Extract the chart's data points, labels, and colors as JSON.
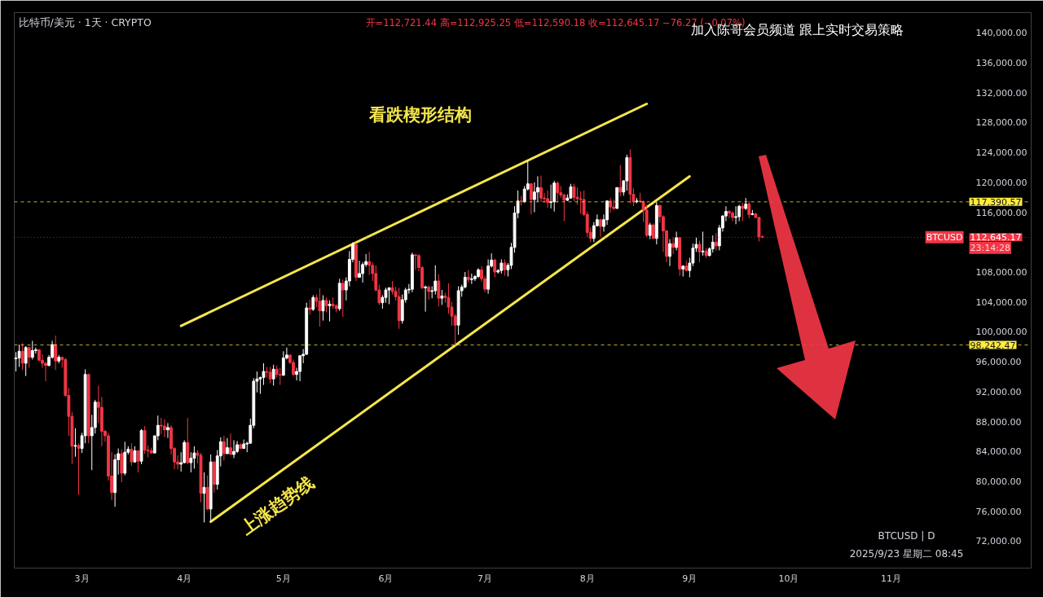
{
  "chart_data": {
    "type": "candlestick",
    "title": "比特币/美元 · 1天 · CRYPTO",
    "subtitle": "开=112,721.44 高=112,925.25 低=112,590.18 收=112,645.17 −76.27 (−0.07%)",
    "x": [
      "2025-02-09",
      "2025-02-10",
      "2025-02-11",
      "2025-02-12",
      "2025-02-13",
      "2025-02-14",
      "2025-02-15",
      "2025-02-16",
      "2025-02-17",
      "2025-02-18",
      "2025-02-19",
      "2025-02-20",
      "2025-02-21",
      "2025-02-22",
      "2025-02-23",
      "2025-02-24",
      "2025-02-25",
      "2025-02-26",
      "2025-02-27",
      "2025-02-28",
      "2025-03-01",
      "2025-03-02",
      "2025-03-03",
      "2025-03-04",
      "2025-03-05",
      "2025-03-06",
      "2025-03-07",
      "2025-03-08",
      "2025-03-09",
      "2025-03-10",
      "2025-03-11",
      "2025-03-12",
      "2025-03-13",
      "2025-03-14",
      "2025-03-15",
      "2025-03-16",
      "2025-03-17",
      "2025-03-18",
      "2025-03-19",
      "2025-03-20",
      "2025-03-21",
      "2025-03-22",
      "2025-03-23",
      "2025-03-24",
      "2025-03-25",
      "2025-03-26",
      "2025-03-27",
      "2025-03-28",
      "2025-03-29",
      "2025-03-30",
      "2025-03-31",
      "2025-04-01",
      "2025-04-02",
      "2025-04-03",
      "2025-04-04",
      "2025-04-05",
      "2025-04-06",
      "2025-04-07",
      "2025-04-08",
      "2025-04-09",
      "2025-04-10",
      "2025-04-11",
      "2025-04-12",
      "2025-04-13",
      "2025-04-14",
      "2025-04-15",
      "2025-04-16",
      "2025-04-17",
      "2025-04-18",
      "2025-04-19",
      "2025-04-20",
      "2025-04-21",
      "2025-04-22",
      "2025-04-23",
      "2025-04-24",
      "2025-04-25",
      "2025-04-26",
      "2025-04-27",
      "2025-04-28",
      "2025-04-29",
      "2025-04-30",
      "2025-05-01",
      "2025-05-02",
      "2025-05-03",
      "2025-05-04",
      "2025-05-05",
      "2025-05-06",
      "2025-05-07",
      "2025-05-08",
      "2025-05-09",
      "2025-05-10",
      "2025-05-11",
      "2025-05-12",
      "2025-05-13",
      "2025-05-14",
      "2025-05-15",
      "2025-05-16",
      "2025-05-17",
      "2025-05-18",
      "2025-05-19",
      "2025-05-20",
      "2025-05-21",
      "2025-05-22",
      "2025-05-23",
      "2025-05-24",
      "2025-05-25",
      "2025-05-26",
      "2025-05-27",
      "2025-05-28",
      "2025-05-29",
      "2025-05-30",
      "2025-05-31",
      "2025-06-01",
      "2025-06-02",
      "2025-06-03",
      "2025-06-04",
      "2025-06-05",
      "2025-06-06",
      "2025-06-07",
      "2025-06-08",
      "2025-06-09",
      "2025-06-10",
      "2025-06-11",
      "2025-06-12",
      "2025-06-13",
      "2025-06-14",
      "2025-06-15",
      "2025-06-16",
      "2025-06-17",
      "2025-06-18",
      "2025-06-19",
      "2025-06-20",
      "2025-06-21",
      "2025-06-22",
      "2025-06-23",
      "2025-06-24",
      "2025-06-25",
      "2025-06-26",
      "2025-06-27",
      "2025-06-28",
      "2025-06-29",
      "2025-06-30",
      "2025-07-01",
      "2025-07-02",
      "2025-07-03",
      "2025-07-04",
      "2025-07-05",
      "2025-07-06",
      "2025-07-07",
      "2025-07-08",
      "2025-07-09",
      "2025-07-10",
      "2025-07-11",
      "2025-07-12",
      "2025-07-13",
      "2025-07-14",
      "2025-07-15",
      "2025-07-16",
      "2025-07-17",
      "2025-07-18",
      "2025-07-19",
      "2025-07-20",
      "2025-07-21",
      "2025-07-22",
      "2025-07-23",
      "2025-07-24",
      "2025-07-25",
      "2025-07-26",
      "2025-07-27",
      "2025-07-28",
      "2025-07-29",
      "2025-07-30",
      "2025-07-31",
      "2025-08-01",
      "2025-08-02",
      "2025-08-03",
      "2025-08-04",
      "2025-08-05",
      "2025-08-06",
      "2025-08-07",
      "2025-08-08",
      "2025-08-09",
      "2025-08-10",
      "2025-08-11",
      "2025-08-12",
      "2025-08-13",
      "2025-08-14",
      "2025-08-15",
      "2025-08-16",
      "2025-08-17",
      "2025-08-18",
      "2025-08-19",
      "2025-08-20",
      "2025-08-21",
      "2025-08-22",
      "2025-08-23",
      "2025-08-24",
      "2025-08-25",
      "2025-08-26",
      "2025-08-27",
      "2025-08-28",
      "2025-08-29",
      "2025-08-30",
      "2025-08-31",
      "2025-09-01",
      "2025-09-02",
      "2025-09-03",
      "2025-09-04",
      "2025-09-05",
      "2025-09-06",
      "2025-09-07",
      "2025-09-08",
      "2025-09-09",
      "2025-09-10",
      "2025-09-11",
      "2025-09-12",
      "2025-09-13",
      "2025-09-14",
      "2025-09-15",
      "2025-09-16",
      "2025-09-17",
      "2025-09-18",
      "2025-09-19",
      "2025-09-20",
      "2025-09-21",
      "2025-09-22",
      "2025-09-23"
    ],
    "ohlc": [
      [
        96400,
        97300,
        94700,
        96500
      ],
      [
        96500,
        98300,
        95300,
        97400
      ],
      [
        97400,
        98500,
        94900,
        95800
      ],
      [
        95800,
        98100,
        94100,
        97900
      ],
      [
        97900,
        97900,
        95200,
        96600
      ],
      [
        96600,
        98800,
        96300,
        97500
      ],
      [
        97500,
        97900,
        97100,
        97600
      ],
      [
        97600,
        97700,
        96100,
        96200
      ],
      [
        96200,
        97000,
        95200,
        95800
      ],
      [
        95800,
        96000,
        93400,
        95500
      ],
      [
        95500,
        96900,
        95400,
        96600
      ],
      [
        96600,
        98800,
        96400,
        98300
      ],
      [
        98300,
        99500,
        94900,
        96100
      ],
      [
        96100,
        96900,
        95800,
        96600
      ],
      [
        96600,
        96700,
        95200,
        96300
      ],
      [
        96300,
        96500,
        91300,
        91500
      ],
      [
        91500,
        92500,
        86100,
        88700
      ],
      [
        88700,
        89300,
        82300,
        84700
      ],
      [
        84700,
        87100,
        83300,
        84800
      ],
      [
        84800,
        85100,
        78200,
        84400
      ],
      [
        84400,
        86500,
        83800,
        86100
      ],
      [
        86100,
        95000,
        85100,
        94300
      ],
      [
        94300,
        94400,
        85100,
        86100
      ],
      [
        86100,
        88900,
        81500,
        87200
      ],
      [
        87200,
        90900,
        86400,
        90600
      ],
      [
        90600,
        92800,
        87800,
        89900
      ],
      [
        89900,
        91300,
        84700,
        86700
      ],
      [
        86700,
        86900,
        85300,
        86100
      ],
      [
        86100,
        86500,
        80100,
        80700
      ],
      [
        80700,
        83900,
        77500,
        78500
      ],
      [
        78500,
        83600,
        76600,
        82900
      ],
      [
        82900,
        84400,
        80900,
        83700
      ],
      [
        83700,
        84300,
        79900,
        81100
      ],
      [
        81100,
        85300,
        80800,
        83900
      ],
      [
        83900,
        84700,
        83600,
        84300
      ],
      [
        84300,
        85100,
        82100,
        82600
      ],
      [
        82600,
        84700,
        82500,
        84100
      ],
      [
        84100,
        84100,
        81200,
        82700
      ],
      [
        82700,
        87000,
        82300,
        86800
      ],
      [
        86800,
        87400,
        83700,
        84200
      ],
      [
        84200,
        84800,
        83200,
        84100
      ],
      [
        84100,
        84500,
        83700,
        83800
      ],
      [
        83800,
        86100,
        83800,
        86100
      ],
      [
        86100,
        88800,
        85500,
        87500
      ],
      [
        87500,
        88500,
        86300,
        87400
      ],
      [
        87400,
        88300,
        85900,
        86900
      ],
      [
        86900,
        87800,
        85800,
        87200
      ],
      [
        87200,
        87500,
        83600,
        84400
      ],
      [
        84400,
        84600,
        81600,
        82600
      ],
      [
        82600,
        83500,
        81600,
        82300
      ],
      [
        82300,
        83900,
        81300,
        82500
      ],
      [
        82500,
        85500,
        82400,
        85200
      ],
      [
        85200,
        88500,
        82300,
        82500
      ],
      [
        82500,
        83900,
        81200,
        83100
      ],
      [
        83100,
        84700,
        81700,
        83800
      ],
      [
        83800,
        84200,
        82400,
        83500
      ],
      [
        83500,
        83800,
        77200,
        78400
      ],
      [
        78400,
        81200,
        74500,
        79200
      ],
      [
        79200,
        80800,
        76200,
        76300
      ],
      [
        76300,
        83600,
        74600,
        82600
      ],
      [
        82600,
        82700,
        78500,
        79600
      ],
      [
        79600,
        84200,
        78900,
        83400
      ],
      [
        83400,
        85900,
        82000,
        85300
      ],
      [
        85300,
        86100,
        82800,
        83700
      ],
      [
        83700,
        85800,
        83700,
        84500
      ],
      [
        84500,
        86400,
        83600,
        83600
      ],
      [
        83600,
        85500,
        83100,
        84000
      ],
      [
        84000,
        85400,
        83800,
        84900
      ],
      [
        84900,
        85100,
        84300,
        84400
      ],
      [
        84400,
        85600,
        84400,
        85000
      ],
      [
        85000,
        85300,
        83900,
        85100
      ],
      [
        85100,
        88400,
        85100,
        87500
      ],
      [
        87500,
        93800,
        87100,
        93400
      ],
      [
        93400,
        94700,
        91900,
        93700
      ],
      [
        93700,
        94000,
        91700,
        93900
      ],
      [
        93900,
        95800,
        92900,
        94700
      ],
      [
        94700,
        95300,
        93900,
        94600
      ],
      [
        94600,
        95300,
        93100,
        93700
      ],
      [
        93700,
        95600,
        92800,
        95000
      ],
      [
        95000,
        95500,
        93900,
        94300
      ],
      [
        94300,
        95200,
        92900,
        94200
      ],
      [
        94200,
        97400,
        94100,
        96500
      ],
      [
        96500,
        97900,
        96300,
        96900
      ],
      [
        96900,
        96900,
        95700,
        95900
      ],
      [
        95900,
        96300,
        94100,
        94300
      ],
      [
        94300,
        95200,
        93500,
        94700
      ],
      [
        94700,
        96900,
        93400,
        96800
      ],
      [
        96800,
        97700,
        95800,
        97000
      ],
      [
        97000,
        103900,
        96900,
        103200
      ],
      [
        103200,
        104300,
        102300,
        103000
      ],
      [
        103000,
        104900,
        102800,
        104600
      ],
      [
        104600,
        105000,
        103300,
        104100
      ],
      [
        104100,
        105800,
        100700,
        102800
      ],
      [
        102800,
        104900,
        101500,
        104200
      ],
      [
        104200,
        104600,
        102600,
        103500
      ],
      [
        103500,
        104200,
        101400,
        103700
      ],
      [
        103700,
        104600,
        103100,
        103500
      ],
      [
        103500,
        103700,
        102600,
        103100
      ],
      [
        103100,
        107100,
        102800,
        106500
      ],
      [
        106500,
        107000,
        102000,
        105600
      ],
      [
        105600,
        107300,
        104200,
        106800
      ],
      [
        106800,
        110800,
        106100,
        109700
      ],
      [
        109700,
        112000,
        109300,
        111700
      ],
      [
        111700,
        111900,
        106800,
        107300
      ],
      [
        107300,
        109500,
        107300,
        107800
      ],
      [
        107800,
        109300,
        106600,
        109000
      ],
      [
        109000,
        110400,
        108700,
        109400
      ],
      [
        109400,
        110700,
        107600,
        108900
      ],
      [
        108900,
        109300,
        106800,
        107800
      ],
      [
        107800,
        108900,
        105400,
        105600
      ],
      [
        105600,
        106300,
        103600,
        103900
      ],
      [
        103900,
        104900,
        103100,
        104600
      ],
      [
        104600,
        105900,
        103900,
        105600
      ],
      [
        105600,
        105900,
        103700,
        105900
      ],
      [
        105900,
        106800,
        105000,
        105400
      ],
      [
        105400,
        106000,
        104200,
        104700
      ],
      [
        104700,
        105900,
        100400,
        101500
      ],
      [
        101500,
        105000,
        101100,
        104300
      ],
      [
        104300,
        105900,
        103900,
        105600
      ],
      [
        105600,
        106400,
        105100,
        105700
      ],
      [
        105700,
        110600,
        105300,
        110300
      ],
      [
        110300,
        110400,
        108300,
        110200
      ],
      [
        110200,
        110400,
        108100,
        108600
      ],
      [
        108600,
        108800,
        105700,
        105900
      ],
      [
        105900,
        106200,
        102700,
        106000
      ],
      [
        106000,
        106200,
        104300,
        105400
      ],
      [
        105400,
        106100,
        104500,
        105500
      ],
      [
        105500,
        108900,
        105000,
        106800
      ],
      [
        106800,
        107700,
        103400,
        104500
      ],
      [
        104500,
        105600,
        103600,
        104800
      ],
      [
        104800,
        105200,
        103900,
        104600
      ],
      [
        104600,
        106500,
        102400,
        103300
      ],
      [
        103300,
        104000,
        100800,
        102100
      ],
      [
        102100,
        102400,
        98200,
        100900
      ],
      [
        100900,
        106100,
        99600,
        105500
      ],
      [
        105500,
        106300,
        104700,
        106000
      ],
      [
        106000,
        108000,
        105800,
        107300
      ],
      [
        107300,
        108300,
        106600,
        107000
      ],
      [
        107000,
        107800,
        106400,
        107100
      ],
      [
        107100,
        107600,
        106800,
        107400
      ],
      [
        107400,
        108500,
        107200,
        108300
      ],
      [
        108300,
        108800,
        106700,
        107100
      ],
      [
        107100,
        107500,
        105300,
        105700
      ],
      [
        105700,
        109700,
        105100,
        108800
      ],
      [
        108800,
        110500,
        108600,
        109600
      ],
      [
        109600,
        109800,
        107300,
        108000
      ],
      [
        108000,
        108400,
        107800,
        108200
      ],
      [
        108200,
        109700,
        107800,
        109200
      ],
      [
        109200,
        109700,
        107500,
        108300
      ],
      [
        108300,
        109200,
        107400,
        108900
      ],
      [
        108900,
        111900,
        108400,
        111300
      ],
      [
        111300,
        116800,
        110600,
        115900
      ],
      [
        115900,
        118900,
        115200,
        117500
      ],
      [
        117500,
        118200,
        116900,
        117400
      ],
      [
        117400,
        119500,
        117300,
        119100
      ],
      [
        119100,
        122900,
        118900,
        119800
      ],
      [
        119800,
        119900,
        115700,
        117700
      ],
      [
        117700,
        120000,
        116000,
        118700
      ],
      [
        118700,
        120800,
        117400,
        119300
      ],
      [
        119300,
        120900,
        117400,
        117900
      ],
      [
        117900,
        118600,
        117300,
        117800
      ],
      [
        117800,
        118900,
        116600,
        117300
      ],
      [
        117300,
        119700,
        116500,
        117400
      ],
      [
        117400,
        120200,
        116100,
        119900
      ],
      [
        119900,
        120100,
        117300,
        118600
      ],
      [
        118600,
        119500,
        117900,
        118300
      ],
      [
        118300,
        118500,
        114800,
        117600
      ],
      [
        117600,
        118400,
        117500,
        117900
      ],
      [
        117900,
        119800,
        117800,
        119400
      ],
      [
        119400,
        119800,
        117500,
        118000
      ],
      [
        118000,
        119300,
        117000,
        117800
      ],
      [
        117800,
        118800,
        115800,
        117700
      ],
      [
        117700,
        118900,
        115500,
        115700
      ],
      [
        115700,
        116100,
        112700,
        113300
      ],
      [
        113300,
        114000,
        112000,
        112500
      ],
      [
        112500,
        114700,
        112000,
        114200
      ],
      [
        114200,
        115700,
        114100,
        115000
      ],
      [
        115000,
        115100,
        112700,
        114100
      ],
      [
        114100,
        115700,
        113400,
        115000
      ],
      [
        115000,
        117600,
        114300,
        117500
      ],
      [
        117500,
        117900,
        115900,
        116700
      ],
      [
        116700,
        117700,
        116300,
        116500
      ],
      [
        116500,
        119300,
        116500,
        119300
      ],
      [
        119300,
        122300,
        118100,
        118700
      ],
      [
        118700,
        120300,
        118200,
        120200
      ],
      [
        120200,
        123700,
        118900,
        123300
      ],
      [
        123300,
        124400,
        117200,
        118400
      ],
      [
        118400,
        119200,
        116800,
        117400
      ],
      [
        117400,
        117900,
        117200,
        117500
      ],
      [
        117500,
        118600,
        117300,
        117400
      ],
      [
        117400,
        117600,
        114700,
        116300
      ],
      [
        116300,
        117000,
        112700,
        112900
      ],
      [
        112900,
        114600,
        112400,
        114300
      ],
      [
        114300,
        114500,
        112400,
        112500
      ],
      [
        112500,
        117400,
        111700,
        116900
      ],
      [
        116900,
        117000,
        114600,
        115400
      ],
      [
        115400,
        115600,
        110700,
        113500
      ],
      [
        113500,
        113600,
        109300,
        110100
      ],
      [
        110100,
        112400,
        108800,
        111800
      ],
      [
        111800,
        112600,
        110400,
        111300
      ],
      [
        111300,
        113400,
        110900,
        112600
      ],
      [
        112600,
        112700,
        107500,
        108400
      ],
      [
        108400,
        108900,
        107400,
        108800
      ],
      [
        108800,
        109500,
        108100,
        108200
      ],
      [
        108200,
        109900,
        107300,
        109200
      ],
      [
        109200,
        111800,
        108800,
        111200
      ],
      [
        111200,
        112600,
        110700,
        111700
      ],
      [
        111700,
        112200,
        109300,
        110700
      ],
      [
        110700,
        113400,
        110200,
        110800
      ],
      [
        110800,
        111200,
        109900,
        110200
      ],
      [
        110200,
        111300,
        110100,
        111100
      ],
      [
        111100,
        112900,
        110600,
        112000
      ],
      [
        112000,
        113200,
        110900,
        111500
      ],
      [
        111500,
        114300,
        110900,
        113900
      ],
      [
        113900,
        115600,
        113400,
        115500
      ],
      [
        115500,
        116800,
        114800,
        116100
      ],
      [
        116100,
        116300,
        115200,
        115900
      ],
      [
        115900,
        116100,
        114800,
        115300
      ],
      [
        115300,
        116800,
        114400,
        115400
      ],
      [
        115400,
        117000,
        114800,
        116800
      ],
      [
        116800,
        117300,
        114800,
        116500
      ],
      [
        116500,
        117900,
        116300,
        117100
      ],
      [
        117100,
        117500,
        115200,
        115700
      ],
      [
        115700,
        116300,
        115600,
        115800
      ],
      [
        115800,
        115900,
        115200,
        115300
      ],
      [
        115300,
        115400,
        112100,
        112700
      ],
      [
        112721.44,
        112925.25,
        112590.18,
        112645.17
      ]
    ],
    "colors": [
      "#ffffff",
      "#ffffff",
      "#f23645",
      "#ffffff",
      "#f23645",
      "#ffffff",
      "#ffffff",
      "#f23645",
      "#f23645",
      "#f23645",
      "#ffffff",
      "#ffffff",
      "#f23645",
      "#ffffff",
      "#f23645",
      "#f23645",
      "#f23645",
      "#f23645",
      "#ffffff",
      "#f23645",
      "#ffffff",
      "#ffffff",
      "#f23645",
      "#ffffff",
      "#ffffff",
      "#f23645",
      "#f23645",
      "#f23645",
      "#f23645",
      "#f23645",
      "#ffffff",
      "#ffffff",
      "#f23645",
      "#ffffff",
      "#ffffff",
      "#f23645",
      "#ffffff",
      "#f23645",
      "#ffffff",
      "#f23645",
      "#f23645",
      "#f23645",
      "#ffffff",
      "#ffffff",
      "#f23645",
      "#f23645",
      "#ffffff",
      "#f23645",
      "#f23645",
      "#f23645",
      "#ffffff",
      "#ffffff",
      "#f23645",
      "#ffffff",
      "#ffffff",
      "#f23645",
      "#f23645",
      "#ffffff",
      "#f23645",
      "#ffffff",
      "#f23645",
      "#ffffff",
      "#ffffff",
      "#f23645",
      "#ffffff",
      "#f23645",
      "#ffffff",
      "#ffffff",
      "#f23645",
      "#ffffff",
      "#ffffff",
      "#ffffff",
      "#ffffff",
      "#ffffff",
      "#ffffff",
      "#ffffff",
      "#f23645",
      "#f23645",
      "#ffffff",
      "#f23645",
      "#f23645",
      "#ffffff",
      "#ffffff",
      "#f23645",
      "#f23645",
      "#ffffff",
      "#ffffff",
      "#ffffff",
      "#ffffff",
      "#f23645",
      "#ffffff",
      "#f23645",
      "#f23645",
      "#ffffff",
      "#f23645",
      "#ffffff",
      "#f23645",
      "#f23645",
      "#ffffff",
      "#f23645",
      "#ffffff",
      "#ffffff",
      "#ffffff",
      "#f23645",
      "#ffffff",
      "#ffffff",
      "#ffffff",
      "#f23645",
      "#f23645",
      "#f23645",
      "#f23645",
      "#ffffff",
      "#ffffff",
      "#ffffff",
      "#f23645",
      "#f23645",
      "#f23645",
      "#ffffff",
      "#ffffff",
      "#ffffff",
      "#ffffff",
      "#f23645",
      "#f23645",
      "#f23645",
      "#ffffff",
      "#f23645",
      "#ffffff",
      "#ffffff",
      "#f23645",
      "#ffffff",
      "#f23645",
      "#f23645",
      "#f23645",
      "#f23645",
      "#ffffff",
      "#ffffff",
      "#ffffff",
      "#f23645",
      "#ffffff",
      "#ffffff",
      "#ffffff",
      "#f23645",
      "#f23645",
      "#ffffff",
      "#ffffff",
      "#f23645",
      "#ffffff",
      "#ffffff",
      "#f23645",
      "#ffffff",
      "#ffffff",
      "#ffffff",
      "#ffffff",
      "#f23645",
      "#ffffff",
      "#ffffff",
      "#f23645",
      "#ffffff",
      "#ffffff",
      "#f23645",
      "#f23645",
      "#f23645",
      "#ffffff",
      "#ffffff",
      "#f23645",
      "#f23645",
      "#f23645",
      "#ffffff",
      "#ffffff",
      "#f23645",
      "#f23645",
      "#f23645",
      "#f23645",
      "#f23645",
      "#f23645",
      "#ffffff",
      "#ffffff",
      "#f23645",
      "#ffffff",
      "#ffffff",
      "#f23645",
      "#f23645",
      "#ffffff",
      "#f23645",
      "#ffffff",
      "#ffffff",
      "#f23645",
      "#f23645",
      "#ffffff",
      "#f23645",
      "#f23645",
      "#f23645",
      "#ffffff",
      "#f23645",
      "#ffffff",
      "#f23645",
      "#f23645",
      "#f23645",
      "#ffffff",
      "#f23645",
      "#ffffff",
      "#f23645",
      "#ffffff",
      "#f23645",
      "#ffffff",
      "#ffffff",
      "#ffffff",
      "#f23645",
      "#ffffff",
      "#f23645",
      "#ffffff",
      "#ffffff",
      "#f23645",
      "#ffffff",
      "#ffffff",
      "#ffffff",
      "#f23645",
      "#f23645",
      "#ffffff",
      "#ffffff",
      "#f23645",
      "#ffffff",
      "#f23645",
      "#ffffff",
      "#f23645",
      "#f23645",
      "#f23645"
    ],
    "series": [
      {
        "type": "line",
        "color": "#f5e64c",
        "x": [
          "2025-03-31",
          "2025-08-19"
        ],
        "values": [
          100800,
          130500
        ]
      },
      {
        "type": "line",
        "color": "#f5e64c",
        "x": [
          "2025-04-09",
          "2025-09-01"
        ],
        "values": [
          74600,
          120800
        ]
      }
    ],
    "xlim": [
      "2025-02-08T12:00",
      "2025-12-13T10:00"
    ],
    "ylim": [
      68400,
      142700
    ],
    "xticks": [
      {
        "value": "2025-03-01",
        "label": "3月"
      },
      {
        "value": "2025-04-01",
        "label": "4月"
      },
      {
        "value": "2025-05-01",
        "label": "5月"
      },
      {
        "value": "2025-06-01",
        "label": "6月"
      },
      {
        "value": "2025-07-01",
        "label": "7月"
      },
      {
        "value": "2025-08-01",
        "label": "8月"
      },
      {
        "value": "2025-09-01",
        "label": "9月"
      },
      {
        "value": "2025-10-01",
        "label": "10月"
      },
      {
        "value": "2025-11-01",
        "label": "11月"
      }
    ],
    "yticks": [
      {
        "value": 72000,
        "label": "72,000.00"
      },
      {
        "value": 76000,
        "label": "76,000.00"
      },
      {
        "value": 80000,
        "label": "80,000.00"
      },
      {
        "value": 84000,
        "label": "84,000.00"
      },
      {
        "value": 88000,
        "label": "88,000.00"
      },
      {
        "value": 92000,
        "label": "92,000.00"
      },
      {
        "value": 96000,
        "label": "96,000.00"
      },
      {
        "value": 100000,
        "label": "100,000.00"
      },
      {
        "value": 104000,
        "label": "104,000.00"
      },
      {
        "value": 108000,
        "label": "108,000.00"
      },
      {
        "value": 116000,
        "label": "116,000.00"
      },
      {
        "value": 120000,
        "label": "120,000.00"
      },
      {
        "value": 124000,
        "label": "124,000.00"
      },
      {
        "value": 128000,
        "label": "128,000.00"
      },
      {
        "value": 132000,
        "label": "132,000.00"
      },
      {
        "value": 136000,
        "label": "136,000.00"
      },
      {
        "value": 140000,
        "label": "140,000.00"
      }
    ],
    "ref_lines": [
      {
        "axis": "y",
        "value": 117390.57,
        "label": "117,390.57",
        "color": "#ffeb3b",
        "line_style": "dashed"
      },
      {
        "axis": "y",
        "value": 98242.47,
        "label": "98,242.47",
        "color": "#ffeb3b",
        "line_style": "dashed"
      },
      {
        "axis": "y",
        "value": 112645.17,
        "label": "112,645.17",
        "color": "#f23645",
        "line_style": "dotted"
      }
    ],
    "annotations": [
      "加入陈哥会员频道 跟上实时交易策略",
      "BTCUSD | D",
      "2025/9/23 星期二 08:45",
      "看跌楔形结构",
      "上涨趋势线",
      {
        "text": "BTCUSD",
        "y": 112645.17
      },
      {
        "text": "23:14:28",
        "y": 112645.17
      }
    ]
  }
}
